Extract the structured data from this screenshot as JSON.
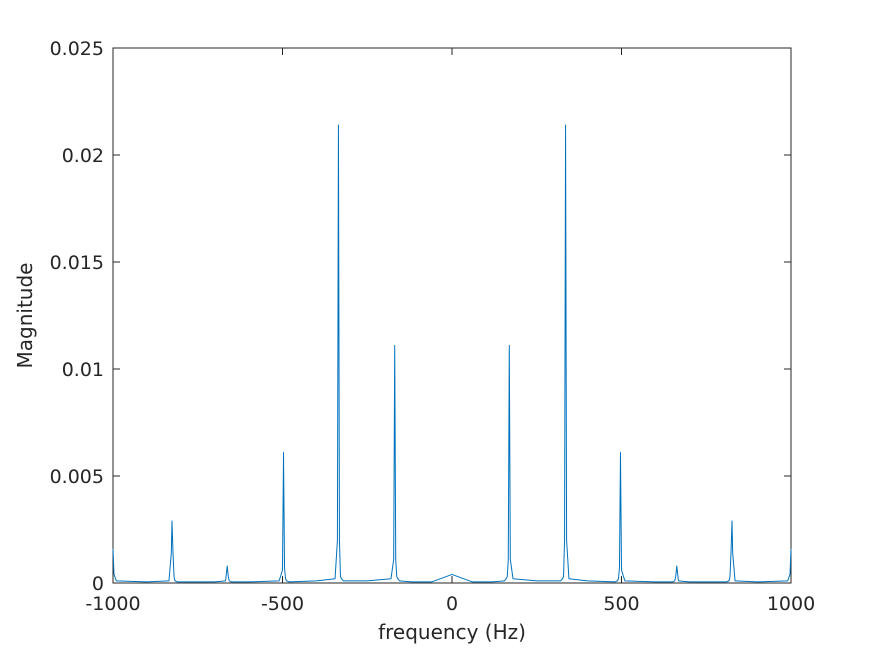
{
  "chart_data": {
    "type": "line",
    "title": "",
    "xlabel": "frequency (Hz)",
    "ylabel": "Magnitude",
    "xlim": [
      -1000,
      1000
    ],
    "ylim": [
      0,
      0.025
    ],
    "grid": false,
    "legend": "none",
    "line_color": "#0072BD",
    "axis_color": "#262626",
    "x_ticks": [
      -1000,
      -500,
      0,
      500,
      1000
    ],
    "x_tick_labels": [
      "-1000",
      "-500",
      "0",
      "500",
      "1000"
    ],
    "y_ticks": [
      0,
      0.005,
      0.01,
      0.015,
      0.02,
      0.025
    ],
    "y_tick_labels": [
      "0",
      "0.005",
      "0.01",
      "0.015",
      "0.02",
      "0.025"
    ],
    "series": [
      {
        "x": [
          -1000,
          -997,
          -990,
          -900,
          -835,
          -828,
          -826,
          -823,
          -820,
          -817,
          -810,
          -700,
          -668,
          -663,
          -660,
          -657,
          -652,
          -600,
          -510,
          -500,
          -497,
          -494,
          -491,
          -488,
          -480,
          -400,
          -345,
          -338,
          -335,
          -332,
          -329,
          -326,
          -320,
          -250,
          -180,
          -172,
          -169,
          -166,
          -163,
          -160,
          -155,
          -120,
          -60,
          0,
          60,
          120,
          155,
          160,
          163,
          166,
          169,
          172,
          180,
          250,
          320,
          326,
          329,
          332,
          335,
          338,
          345,
          400,
          480,
          488,
          491,
          494,
          497,
          500,
          510,
          600,
          652,
          657,
          660,
          663,
          668,
          700,
          810,
          817,
          820,
          823,
          826,
          828,
          835,
          900,
          990,
          997,
          1000
        ],
        "y": [
          0.0016,
          0.0004,
          0.0001,
          5e-05,
          0.0001,
          0.0014,
          0.0029,
          0.0014,
          0.0003,
          0.0001,
          5e-05,
          5e-05,
          0.0001,
          0.0008,
          0.0003,
          0.0001,
          5e-05,
          5e-05,
          0.0001,
          0.0006,
          0.0061,
          0.0007,
          0.0002,
          0.0001,
          5e-05,
          0.0001,
          0.0002,
          0.002,
          0.0214,
          0.002,
          0.0003,
          0.0002,
          0.0001,
          0.0001,
          0.0002,
          0.0011,
          0.0111,
          0.0011,
          0.0003,
          0.0002,
          0.0001,
          5e-05,
          5e-05,
          0.0004,
          5e-05,
          5e-05,
          0.0001,
          0.0002,
          0.0003,
          0.0011,
          0.0111,
          0.0011,
          0.0002,
          0.0001,
          0.0001,
          0.0002,
          0.0003,
          0.002,
          0.0214,
          0.002,
          0.0002,
          0.0001,
          5e-05,
          0.0001,
          0.0002,
          0.0007,
          0.0061,
          0.0006,
          0.0001,
          5e-05,
          5e-05,
          0.0001,
          0.0003,
          0.0008,
          0.0001,
          5e-05,
          5e-05,
          0.0001,
          0.0003,
          0.0014,
          0.0029,
          0.0014,
          0.0001,
          5e-05,
          0.0001,
          0.0004,
          0.0016
        ]
      }
    ]
  }
}
